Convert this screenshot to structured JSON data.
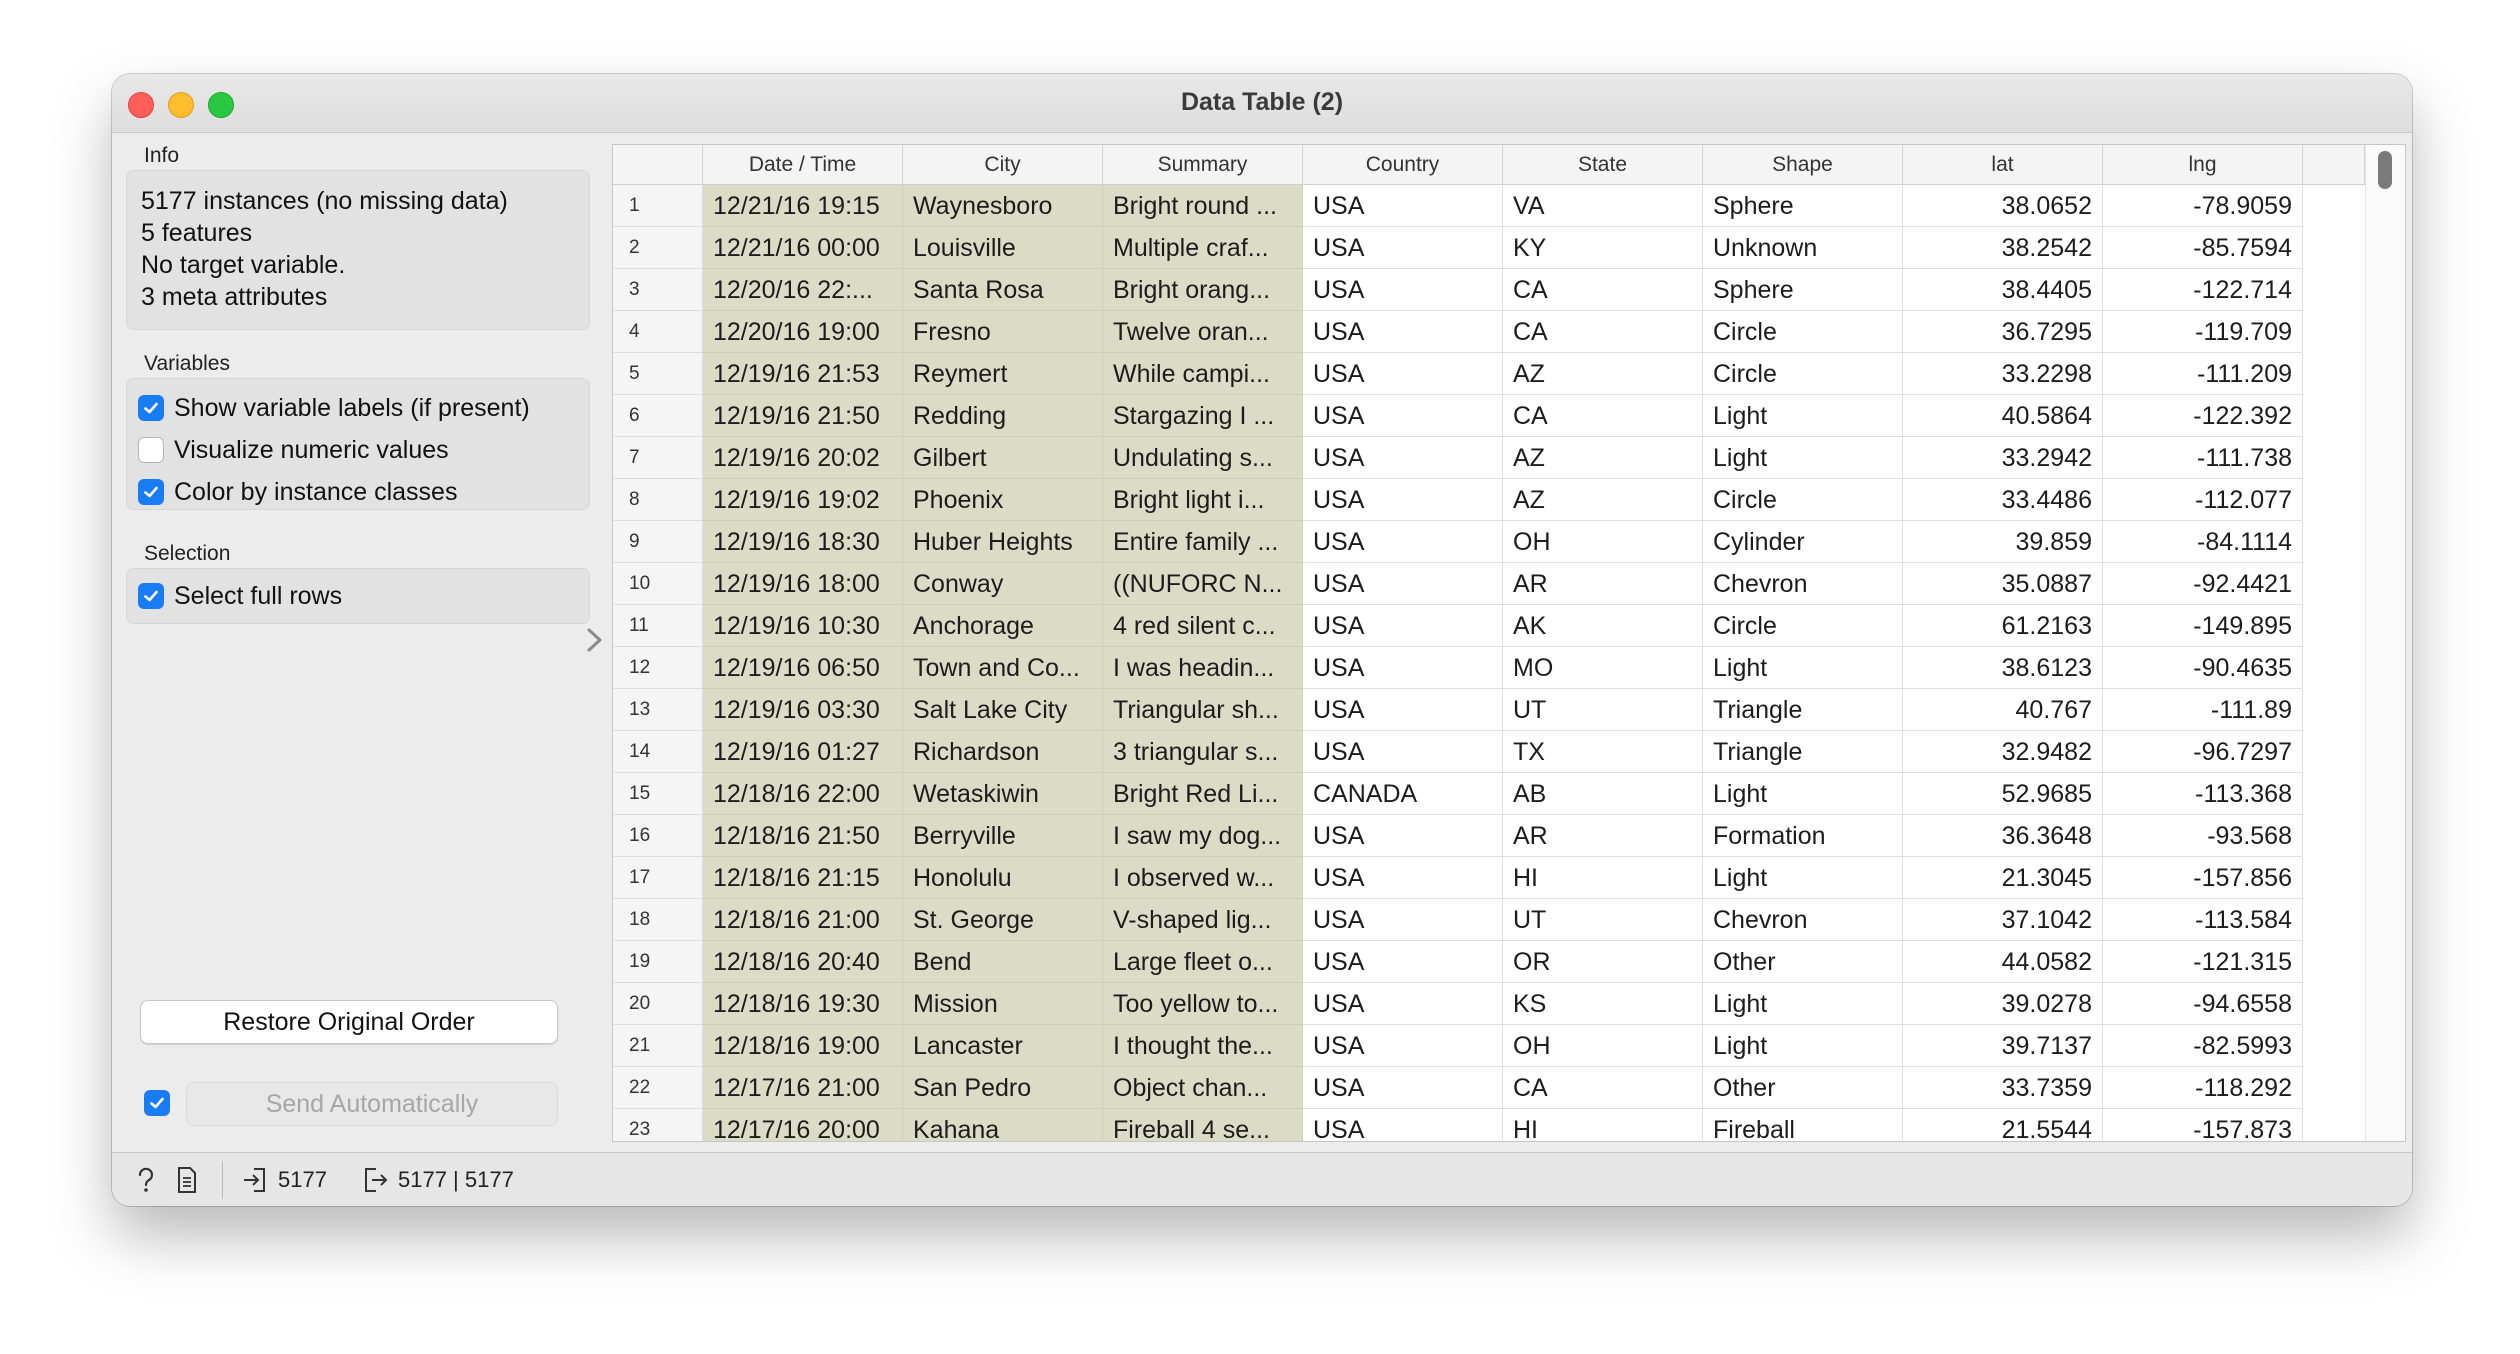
{
  "window": {
    "title": "Data Table (2)"
  },
  "info": {
    "label": "Info",
    "lines": [
      "5177 instances (no missing data)",
      "5 features",
      "No target variable.",
      "3 meta attributes"
    ]
  },
  "variables": {
    "label": "Variables",
    "options": [
      {
        "label": "Show variable labels (if present)",
        "checked": true
      },
      {
        "label": "Visualize numeric values",
        "checked": false
      },
      {
        "label": "Color by instance classes",
        "checked": true
      }
    ]
  },
  "selection": {
    "label": "Selection",
    "options": [
      {
        "label": "Select full rows",
        "checked": true
      }
    ]
  },
  "buttons": {
    "restore": "Restore Original Order",
    "send": "Send Automatically",
    "auto_send_checked": true
  },
  "table": {
    "columns": [
      "Date / Time",
      "City",
      "Summary",
      "Country",
      "State",
      "Shape",
      "lat",
      "lng"
    ],
    "rows": [
      [
        "1",
        "12/21/16 19:15",
        "Waynesboro",
        "Bright round ...",
        "USA",
        "VA",
        "Sphere",
        "38.0652",
        "-78.9059"
      ],
      [
        "2",
        "12/21/16 00:00",
        "Louisville",
        "Multiple craf...",
        "USA",
        "KY",
        "Unknown",
        "38.2542",
        "-85.7594"
      ],
      [
        "3",
        "12/20/16 22:...",
        "Santa Rosa",
        "Bright orang...",
        "USA",
        "CA",
        "Sphere",
        "38.4405",
        "-122.714"
      ],
      [
        "4",
        "12/20/16 19:00",
        "Fresno",
        "Twelve oran...",
        "USA",
        "CA",
        "Circle",
        "36.7295",
        "-119.709"
      ],
      [
        "5",
        "12/19/16 21:53",
        "Reymert",
        "While campi...",
        "USA",
        "AZ",
        "Circle",
        "33.2298",
        "-111.209"
      ],
      [
        "6",
        "12/19/16 21:50",
        "Redding",
        "Stargazing I ...",
        "USA",
        "CA",
        "Light",
        "40.5864",
        "-122.392"
      ],
      [
        "7",
        "12/19/16 20:02",
        "Gilbert",
        "Undulating s...",
        "USA",
        "AZ",
        "Light",
        "33.2942",
        "-111.738"
      ],
      [
        "8",
        "12/19/16 19:02",
        "Phoenix",
        "Bright light i...",
        "USA",
        "AZ",
        "Circle",
        "33.4486",
        "-112.077"
      ],
      [
        "9",
        "12/19/16 18:30",
        "Huber Heights",
        "Entire family ...",
        "USA",
        "OH",
        "Cylinder",
        "39.859",
        "-84.1114"
      ],
      [
        "10",
        "12/19/16 18:00",
        "Conway",
        "((NUFORC N...",
        "USA",
        "AR",
        "Chevron",
        "35.0887",
        "-92.4421"
      ],
      [
        "11",
        "12/19/16 10:30",
        "Anchorage",
        "4 red silent c...",
        "USA",
        "AK",
        "Circle",
        "61.2163",
        "-149.895"
      ],
      [
        "12",
        "12/19/16 06:50",
        "Town and Co...",
        "I was headin...",
        "USA",
        "MO",
        "Light",
        "38.6123",
        "-90.4635"
      ],
      [
        "13",
        "12/19/16 03:30",
        "Salt Lake City",
        "Triangular sh...",
        "USA",
        "UT",
        "Triangle",
        "40.767",
        "-111.89"
      ],
      [
        "14",
        "12/19/16 01:27",
        "Richardson",
        "3 triangular s...",
        "USA",
        "TX",
        "Triangle",
        "32.9482",
        "-96.7297"
      ],
      [
        "15",
        "12/18/16 22:00",
        "Wetaskiwin",
        "Bright Red Li...",
        "CANADA",
        "AB",
        "Light",
        "52.9685",
        "-113.368"
      ],
      [
        "16",
        "12/18/16 21:50",
        "Berryville",
        "I saw my dog...",
        "USA",
        "AR",
        "Formation",
        "36.3648",
        "-93.568"
      ],
      [
        "17",
        "12/18/16 21:15",
        "Honolulu",
        "I observed w...",
        "USA",
        "HI",
        "Light",
        "21.3045",
        "-157.856"
      ],
      [
        "18",
        "12/18/16 21:00",
        "St. George",
        "V-shaped lig...",
        "USA",
        "UT",
        "Chevron",
        "37.1042",
        "-113.584"
      ],
      [
        "19",
        "12/18/16 20:40",
        "Bend",
        "Large fleet o...",
        "USA",
        "OR",
        "Other",
        "44.0582",
        "-121.315"
      ],
      [
        "20",
        "12/18/16 19:30",
        "Mission",
        "Too yellow to...",
        "USA",
        "KS",
        "Light",
        "39.0278",
        "-94.6558"
      ],
      [
        "21",
        "12/18/16 19:00",
        "Lancaster",
        "I thought the...",
        "USA",
        "OH",
        "Light",
        "39.7137",
        "-82.5993"
      ],
      [
        "22",
        "12/17/16 21:00",
        "San Pedro",
        "Object chan...",
        "USA",
        "CA",
        "Other",
        "33.7359",
        "-118.292"
      ],
      [
        "23",
        "12/17/16 20:00",
        "Kahana",
        "Fireball 4 se...",
        "USA",
        "HI",
        "Fireball",
        "21.5544",
        "-157.873"
      ]
    ]
  },
  "status": {
    "input_count": "5177",
    "output_count": "5177 | 5177"
  }
}
